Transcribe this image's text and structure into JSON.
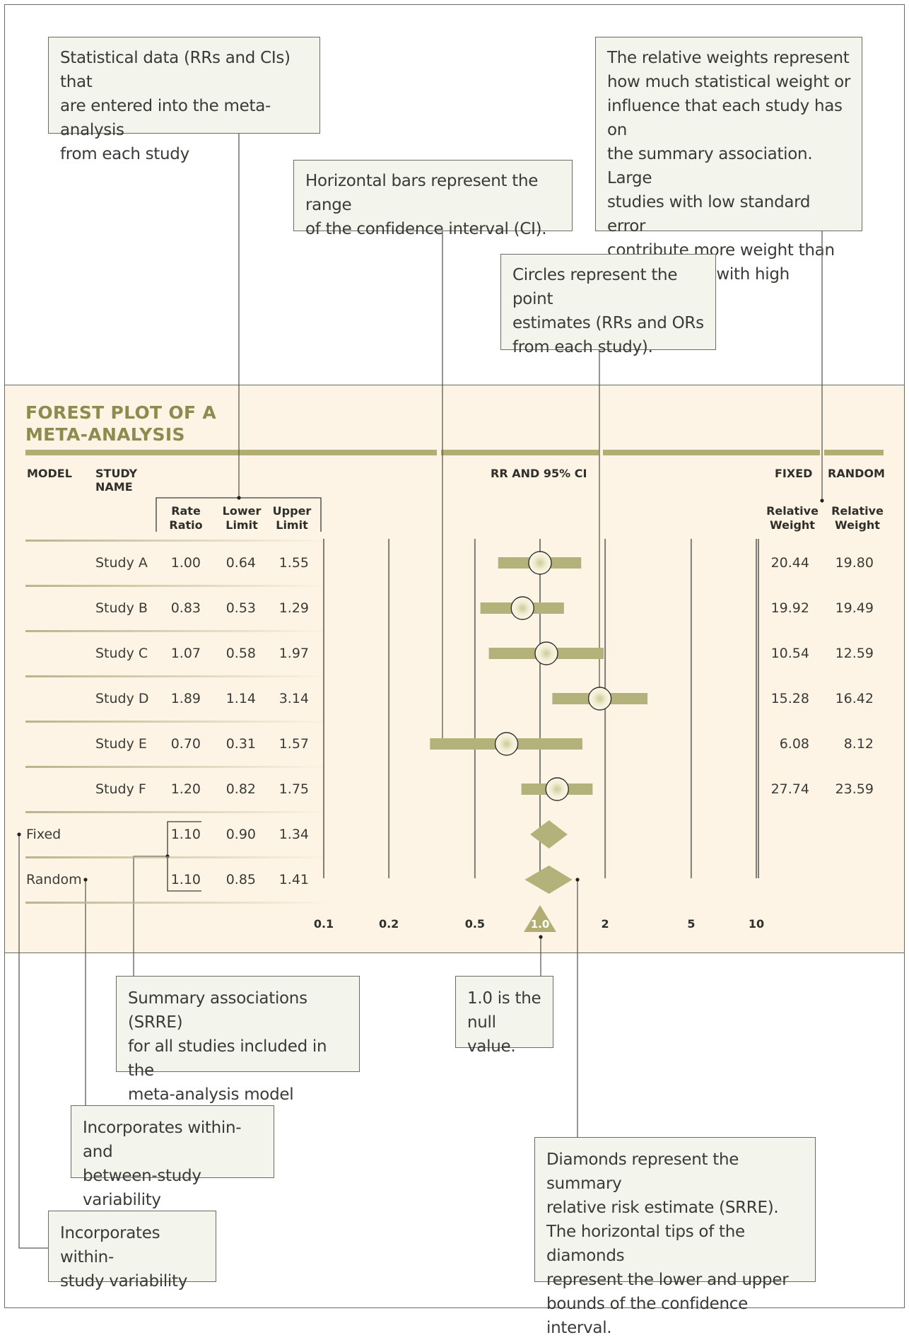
{
  "title": "FOREST PLOT OF A META-ANALYSIS",
  "headers": {
    "model": "MODEL",
    "study_name": "STUDY NAME",
    "rr_ci": "RR AND 95% CI",
    "fixed": "FIXED",
    "random": "RANDOM",
    "rate_ratio": "Rate Ratio",
    "lower_limit": "Lower Limit",
    "upper_limit": "Upper Limit",
    "rel_weight_fixed": "Relative Weight",
    "rel_weight_random": "Relative Weight"
  },
  "callouts": {
    "stat_data": "Statistical data (RRs and CIs) that\nare entered into the meta-analysis\nfrom each study",
    "horizontal_bars": "Horizontal bars represent the range\nof the confidence interval (CI).",
    "relative_weights": "The relative weights represent\nhow much statistical weight or\ninfluence that each study has on\nthe summary association. Large\nstudies with low standard error\ncontribute more weight than\nsmall studies with high variability.",
    "circles": "Circles represent the point\nestimates (RRs and ORs\nfrom each study).",
    "summary_assoc": "Summary associations (SRRE)\nfor all studies included in the\nmeta-analysis model",
    "null_value": "1.0 is the\nnull value.",
    "between_study": "Incorporates within- and\nbetween-study variability",
    "diamonds": "Diamonds represent the summary\nrelative risk estimate (SRRE).\nThe horizontal tips of the diamonds\nrepresent the lower and upper\nbounds of the confidence interval.",
    "within_study": "Incorporates within-\nstudy variability"
  },
  "chart_data": {
    "type": "scatter",
    "title": "FOREST PLOT OF A META-ANALYSIS",
    "xlabel": "RR AND 95% CI",
    "x_scale": "log",
    "x_ticks": [
      0.1,
      0.2,
      0.5,
      1.0,
      2,
      5,
      10
    ],
    "x_tick_labels": [
      "0.1",
      "0.2",
      "0.5",
      "1.0",
      "2",
      "5",
      "10"
    ],
    "null_value": 1.0,
    "studies": [
      {
        "name": "Study A",
        "rr": "1.00",
        "lower": "0.64",
        "upper": "1.55",
        "weight_fixed": "20.44",
        "weight_random": "19.80"
      },
      {
        "name": "Study B",
        "rr": "0.83",
        "lower": "0.53",
        "upper": "1.29",
        "weight_fixed": "19.92",
        "weight_random": "19.49"
      },
      {
        "name": "Study C",
        "rr": "1.07",
        "lower": "0.58",
        "upper": "1.97",
        "weight_fixed": "10.54",
        "weight_random": "12.59"
      },
      {
        "name": "Study D",
        "rr": "1.89",
        "lower": "1.14",
        "upper": "3.14",
        "weight_fixed": "15.28",
        "weight_random": "16.42"
      },
      {
        "name": "Study E",
        "rr": "0.70",
        "lower": "0.31",
        "upper": "1.57",
        "weight_fixed": "6.08",
        "weight_random": "8.12"
      },
      {
        "name": "Study F",
        "rr": "1.20",
        "lower": "0.82",
        "upper": "1.75",
        "weight_fixed": "27.74",
        "weight_random": "23.59"
      }
    ],
    "summaries": [
      {
        "model": "Fixed",
        "rr": "1.10",
        "lower": "0.90",
        "upper": "1.34"
      },
      {
        "model": "Random",
        "rr": "1.10",
        "lower": "0.85",
        "upper": "1.41"
      }
    ],
    "colors": {
      "bar": "#b2b27a",
      "olive": "#8f8a4e",
      "band": "#fdf4e5",
      "diamond": "#b2b27a"
    }
  }
}
